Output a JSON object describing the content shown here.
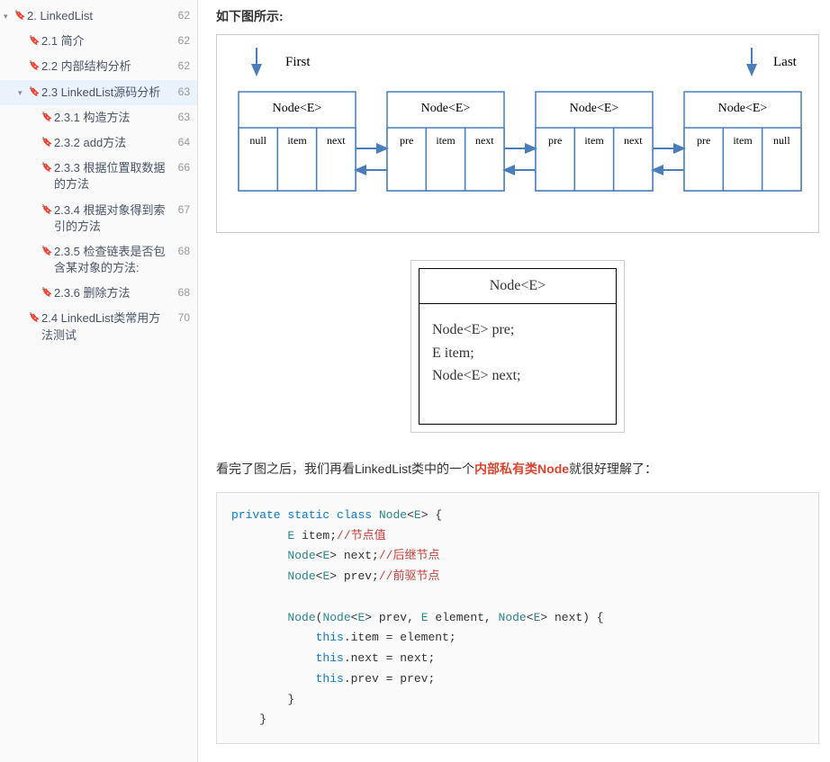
{
  "toc": [
    {
      "indent": 0,
      "arrow": "▾",
      "label": "2. LinkedList",
      "page": "62",
      "active": false
    },
    {
      "indent": 1,
      "arrow": "",
      "label": "2.1 简介",
      "page": "62",
      "active": false
    },
    {
      "indent": 1,
      "arrow": "",
      "label": "2.2 内部结构分析",
      "page": "62",
      "active": false
    },
    {
      "indent": 1,
      "arrow": "▾",
      "label": "2.3 LinkedList源码分析",
      "page": "63",
      "active": true
    },
    {
      "indent": 2,
      "arrow": "",
      "label": "2.3.1  构造方法",
      "page": "63",
      "active": false
    },
    {
      "indent": 2,
      "arrow": "",
      "label": "2.3.2 add方法",
      "page": "64",
      "active": false
    },
    {
      "indent": 2,
      "arrow": "",
      "label": "2.3.3 根据位置取数据的方法",
      "page": "66",
      "active": false
    },
    {
      "indent": 2,
      "arrow": "",
      "label": "2.3.4 根据对象得到索引的方法",
      "page": "67",
      "active": false
    },
    {
      "indent": 2,
      "arrow": "",
      "label": "2.3.5 检查链表是否包含某对象的方法:",
      "page": "68",
      "active": false
    },
    {
      "indent": 2,
      "arrow": "",
      "label": "2.3.6 删除方法",
      "page": "68",
      "active": false
    },
    {
      "indent": 1,
      "arrow": "",
      "label": "2.4  LinkedList类常用方法测试",
      "page": "70",
      "active": false
    }
  ],
  "content": {
    "heading": "如下图所示:",
    "diagram1": {
      "firstLabel": "First",
      "lastLabel": "Last",
      "nodeTitle": "Node<E>",
      "cells_first": [
        "null",
        "item",
        "next"
      ],
      "cells_mid": [
        "pre",
        "item",
        "next"
      ],
      "cells_last": [
        "pre",
        "item",
        "null"
      ],
      "color_border": "#4a7ebb",
      "color_fill": "#ffffff",
      "color_text": "#000000",
      "color_arrow": "#4a7ebb"
    },
    "diagram2": {
      "title": "Node<E>",
      "line1": "Node<E> pre;",
      "line2": "E item;",
      "line3": "Node<E> next;"
    },
    "descPrefix": "看完了图之后，我们再看LinkedList类中的一个",
    "descRed": "内部私有类Node",
    "descSuffix": "就很好理解了：",
    "code": {
      "l1a": "private",
      "l1b": "static",
      "l1c": "class",
      "l1d": "Node",
      "l1e": "<",
      "l1f": "E",
      "l1g": "> {",
      "l2a": "        E",
      "l2b": " item;",
      "l2c": "//节点值",
      "l3a": "        Node",
      "l3b": "<",
      "l3c": "E",
      "l3d": "> next;",
      "l3e": "//后继节点",
      "l4a": "        Node",
      "l4b": "<",
      "l4c": "E",
      "l4d": "> prev;",
      "l4e": "//前驱节点",
      "l5": "",
      "l6a": "        Node",
      "l6b": "(",
      "l6c": "Node",
      "l6d": "<",
      "l6e": "E",
      "l6f": "> prev, ",
      "l6g": "E",
      "l6h": " element, ",
      "l6i": "Node",
      "l6j": "<",
      "l6k": "E",
      "l6l": "> next) {",
      "l7a": "            this",
      "l7b": ".item = element;",
      "l8a": "            this",
      "l8b": ".next = next;",
      "l9a": "            this",
      "l9b": ".prev = prev;",
      "l10": "        }",
      "l11": "    }"
    }
  }
}
